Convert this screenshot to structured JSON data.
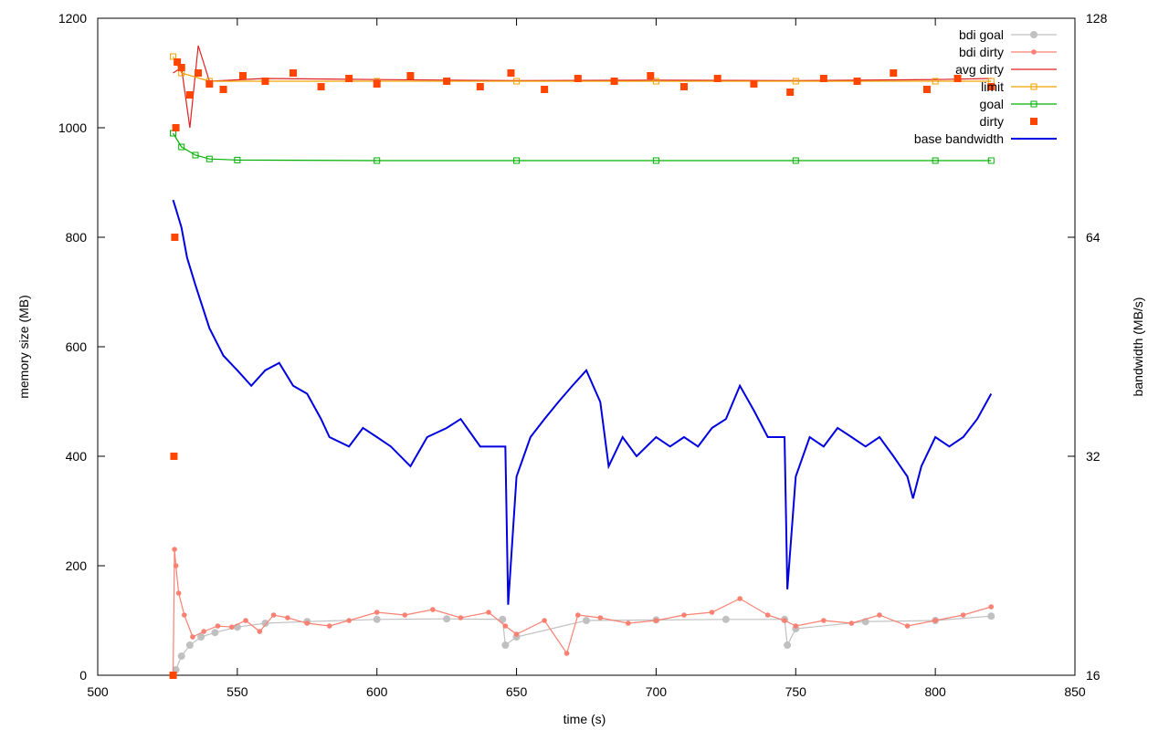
{
  "chart_data": {
    "type": "line",
    "xlabel": "time (s)",
    "ylabel": "memory size (MB)",
    "y2label": "bandwidth (MB/s)",
    "xlim": [
      500,
      850
    ],
    "ylim": [
      0,
      1200
    ],
    "y2lim": [
      16,
      128
    ],
    "y2scale": "log2",
    "grid": false,
    "legend_position": "top-right",
    "x_ticks": [
      500,
      550,
      600,
      650,
      700,
      750,
      800,
      850
    ],
    "y_ticks": [
      0,
      200,
      400,
      600,
      800,
      1000,
      1200
    ],
    "y2_ticks": [
      16,
      32,
      64,
      128
    ],
    "series": [
      {
        "name": "bdi goal",
        "axis": "y",
        "style": "line-points",
        "marker": "circle",
        "color": "#c0c0c0",
        "x": [
          527,
          528,
          530,
          533,
          537,
          542,
          550,
          560,
          575,
          600,
          625,
          645,
          646,
          650,
          675,
          700,
          725,
          746,
          747,
          750,
          775,
          800,
          820
        ],
        "y": [
          0,
          10,
          35,
          55,
          70,
          78,
          88,
          95,
          98,
          102,
          103,
          102,
          55,
          70,
          100,
          101,
          102,
          102,
          55,
          85,
          98,
          100,
          108
        ]
      },
      {
        "name": "bdi dirty",
        "axis": "y",
        "style": "line-points",
        "marker": "dot",
        "color": "#fa8072",
        "x": [
          527,
          527.5,
          528,
          529,
          531,
          534,
          538,
          543,
          548,
          553,
          558,
          563,
          568,
          575,
          583,
          590,
          600,
          610,
          620,
          630,
          640,
          646,
          650,
          660,
          668,
          672,
          680,
          690,
          700,
          710,
          720,
          730,
          740,
          746,
          750,
          760,
          770,
          780,
          790,
          800,
          810,
          820
        ],
        "y": [
          0,
          230,
          200,
          150,
          110,
          70,
          80,
          90,
          88,
          100,
          80,
          110,
          105,
          95,
          90,
          100,
          115,
          110,
          120,
          105,
          115,
          90,
          75,
          100,
          40,
          110,
          105,
          95,
          100,
          110,
          115,
          140,
          110,
          100,
          90,
          100,
          95,
          110,
          90,
          100,
          110,
          125
        ]
      },
      {
        "name": "avg dirty",
        "axis": "y",
        "style": "line",
        "color": "#e02020",
        "x": [
          527,
          530,
          533,
          536,
          540,
          560,
          600,
          650,
          700,
          750,
          800,
          820
        ],
        "y": [
          1100,
          1110,
          1000,
          1150,
          1085,
          1090,
          1088,
          1086,
          1087,
          1086,
          1088,
          1090
        ]
      },
      {
        "name": "limit",
        "axis": "y",
        "style": "line-points",
        "marker": "square-open",
        "color": "#f0a000",
        "x": [
          527,
          530,
          540,
          560,
          600,
          650,
          700,
          750,
          800,
          820
        ],
        "y": [
          1130,
          1100,
          1085,
          1085,
          1085,
          1085,
          1085,
          1085,
          1085,
          1085
        ]
      },
      {
        "name": "goal",
        "axis": "y",
        "style": "line-points",
        "marker": "square-open",
        "color": "#00b000",
        "x": [
          527,
          530,
          535,
          540,
          550,
          600,
          650,
          700,
          750,
          800,
          820
        ],
        "y": [
          990,
          965,
          950,
          943,
          941,
          940,
          940,
          940,
          940,
          940,
          940
        ]
      },
      {
        "name": "dirty",
        "axis": "y",
        "style": "points",
        "marker": "square-filled",
        "color": "#ff4500",
        "x": [
          527,
          527.3,
          527.6,
          528,
          528.5,
          530,
          533,
          536,
          540,
          545,
          552,
          560,
          570,
          580,
          590,
          600,
          612,
          625,
          637,
          648,
          660,
          672,
          685,
          698,
          710,
          722,
          735,
          748,
          760,
          772,
          785,
          797,
          808,
          820
        ],
        "y": [
          0,
          400,
          800,
          1000,
          1120,
          1110,
          1060,
          1100,
          1080,
          1070,
          1095,
          1085,
          1100,
          1075,
          1090,
          1080,
          1095,
          1085,
          1075,
          1100,
          1070,
          1090,
          1085,
          1095,
          1075,
          1090,
          1080,
          1065,
          1090,
          1085,
          1100,
          1070,
          1090,
          1075
        ]
      },
      {
        "name": "base bandwidth",
        "axis": "y2",
        "style": "line",
        "color": "#0000e0",
        "x": [
          527,
          528,
          530,
          532,
          535,
          540,
          545,
          550,
          555,
          560,
          565,
          570,
          575,
          580,
          583,
          590,
          595,
          600,
          605,
          612,
          618,
          625,
          630,
          637,
          643,
          646,
          647,
          650,
          655,
          660,
          665,
          670,
          675,
          680,
          683,
          688,
          693,
          700,
          705,
          710,
          715,
          720,
          725,
          730,
          735,
          740,
          746,
          747,
          750,
          755,
          760,
          765,
          770,
          775,
          780,
          785,
          790,
          792,
          795,
          800,
          805,
          810,
          815,
          820
        ],
        "y": [
          72,
          70,
          66,
          60,
          55,
          48,
          44,
          42,
          40,
          42,
          43,
          40,
          39,
          36,
          34,
          33,
          35,
          34,
          33,
          31,
          34,
          35,
          36,
          33,
          33,
          33,
          20,
          30,
          34,
          36,
          38,
          40,
          42,
          38,
          31,
          34,
          32,
          34,
          33,
          34,
          33,
          35,
          36,
          40,
          37,
          34,
          34,
          21,
          30,
          34,
          33,
          35,
          34,
          33,
          34,
          32,
          30,
          28,
          31,
          34,
          33,
          34,
          36,
          39
        ]
      }
    ]
  }
}
